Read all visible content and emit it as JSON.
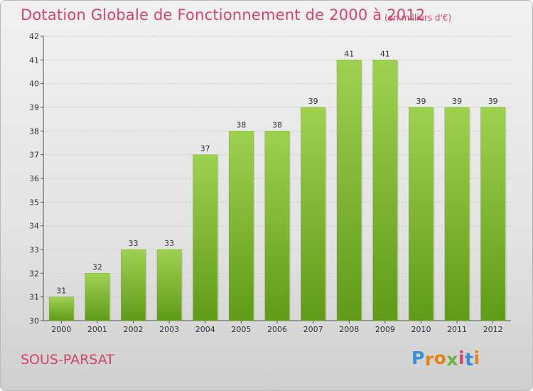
{
  "header": {
    "title": "Dotation Globale de Fonctionnement de 2000 à 2012",
    "subtitle": "(en milliers d'€)"
  },
  "footer": {
    "commune": "SOUS-PARSAT",
    "logo_letters": [
      "P",
      "r",
      "o",
      "x",
      "i",
      "t",
      "i"
    ],
    "logo_colors": [
      "#3a8fd6",
      "#e0841a",
      "#e0841a",
      "#6cb33f",
      "#d6446d",
      "#3a8fd6",
      "#e0841a"
    ]
  },
  "chart_data": {
    "type": "bar",
    "title": "Dotation Globale de Fonctionnement de 2000 à 2012",
    "subtitle": "(en milliers d'€)",
    "categories": [
      "2000",
      "2001",
      "2002",
      "2003",
      "2004",
      "2005",
      "2006",
      "2007",
      "2008",
      "2009",
      "2010",
      "2011",
      "2012"
    ],
    "values": [
      31,
      32,
      33,
      33,
      37,
      38,
      38,
      39,
      41,
      41,
      39,
      39,
      39
    ],
    "ylim": [
      30,
      42
    ],
    "yticks": [
      30,
      31,
      32,
      33,
      34,
      35,
      36,
      37,
      38,
      39,
      40,
      41,
      42
    ],
    "grid": true,
    "bar_color_top": "#9fd151",
    "bar_color_bottom": "#5f9b17"
  }
}
